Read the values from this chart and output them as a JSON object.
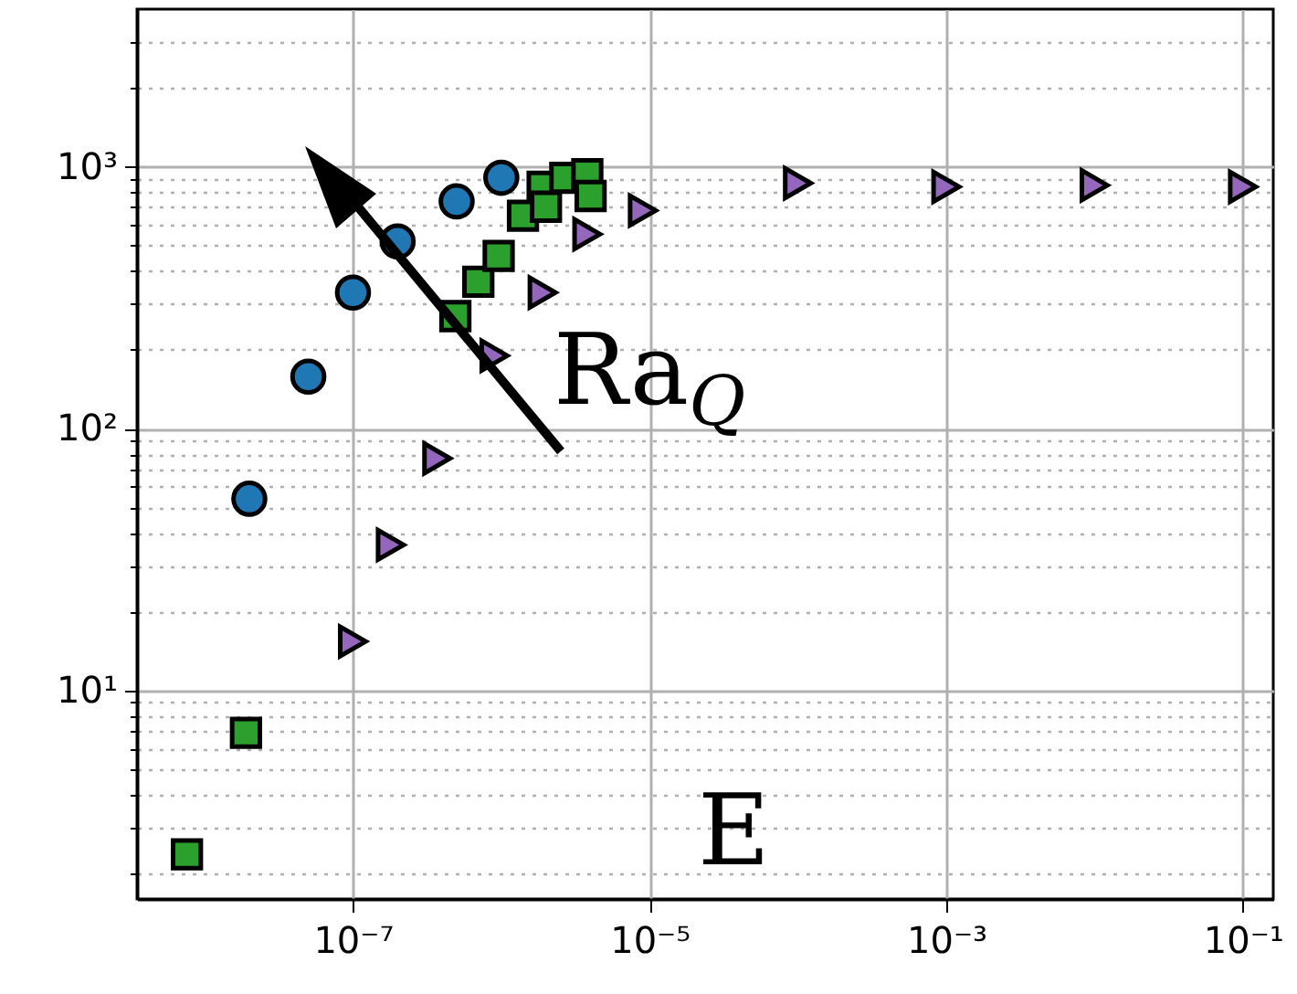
{
  "chart_data": {
    "type": "scatter",
    "annotations": [
      "Ra$_{Q}$",
      "E"
    ],
    "xlim": [
      3.5e-09,
      0.16
    ],
    "ylim": [
      1.6,
      4000
    ],
    "log": "xy",
    "grid": true,
    "xticks": [
      {
        "value": 1e-07,
        "label": "10⁻⁷"
      },
      {
        "value": 1e-05,
        "label": "10⁻⁵"
      },
      {
        "value": 0.001,
        "label": "10⁻³"
      },
      {
        "value": 0.1,
        "label": "10⁻¹"
      }
    ],
    "yticks": [
      {
        "value": 2,
        "label": null
      },
      {
        "value": 3,
        "label": null
      },
      {
        "value": 4,
        "label": null
      },
      {
        "value": 5,
        "label": null
      },
      {
        "value": 6,
        "label": null
      },
      {
        "value": 7,
        "label": null
      },
      {
        "value": 8,
        "label": null
      },
      {
        "value": 9,
        "label": null
      },
      {
        "value": 10,
        "label": "10¹"
      },
      {
        "value": 20,
        "label": null
      },
      {
        "value": 30,
        "label": null
      },
      {
        "value": 40,
        "label": null
      },
      {
        "value": 50,
        "label": null
      },
      {
        "value": 60,
        "label": null
      },
      {
        "value": 70,
        "label": null
      },
      {
        "value": 80,
        "label": null
      },
      {
        "value": 90,
        "label": null
      },
      {
        "value": 100,
        "label": "10²"
      },
      {
        "value": 200,
        "label": null
      },
      {
        "value": 300,
        "label": null
      },
      {
        "value": 400,
        "label": null
      },
      {
        "value": 500,
        "label": null
      },
      {
        "value": 600,
        "label": null
      },
      {
        "value": 700,
        "label": null
      },
      {
        "value": 800,
        "label": null
      },
      {
        "value": 900,
        "label": null
      },
      {
        "value": 1000,
        "label": "10³"
      },
      {
        "value": 2000,
        "label": null
      },
      {
        "value": 3000,
        "label": null
      }
    ],
    "series": [
      {
        "color": "#1f77b4",
        "marker": "circle",
        "x": [
          2e-08,
          5e-08,
          1e-07,
          2e-07,
          5e-07,
          1e-06
        ],
        "values": [
          54,
          158,
          331,
          519,
          738,
          908
        ]
      },
      {
        "color": "#9467bd",
        "marker": "triangle",
        "x": [
          1e-07,
          1.8e-07,
          3.7e-07,
          9e-07,
          1.9e-06,
          3.8e-06,
          9e-06,
          0.0001,
          0.001,
          0.01,
          0.1
        ],
        "values": [
          15.4,
          36,
          77,
          190,
          331,
          553,
          681,
          866,
          839,
          850,
          839
        ]
      },
      {
        "color": "#2ca02c",
        "marker": "square",
        "x": [
          7.6e-09,
          1.9e-08,
          4.9e-07,
          7e-07,
          9.6e-07,
          1.4e-06,
          1.9e-06,
          2.7e-06,
          3.8e-06
        ],
        "values": [
          2.37,
          6.9,
          269,
          364,
          457,
          650,
          839,
          908,
          938
        ]
      },
      {
        "color": "#2ca02c",
        "marker": "square",
        "x": [
          2e-06,
          4e-06
        ],
        "values": [
          704,
          774
        ]
      }
    ]
  }
}
